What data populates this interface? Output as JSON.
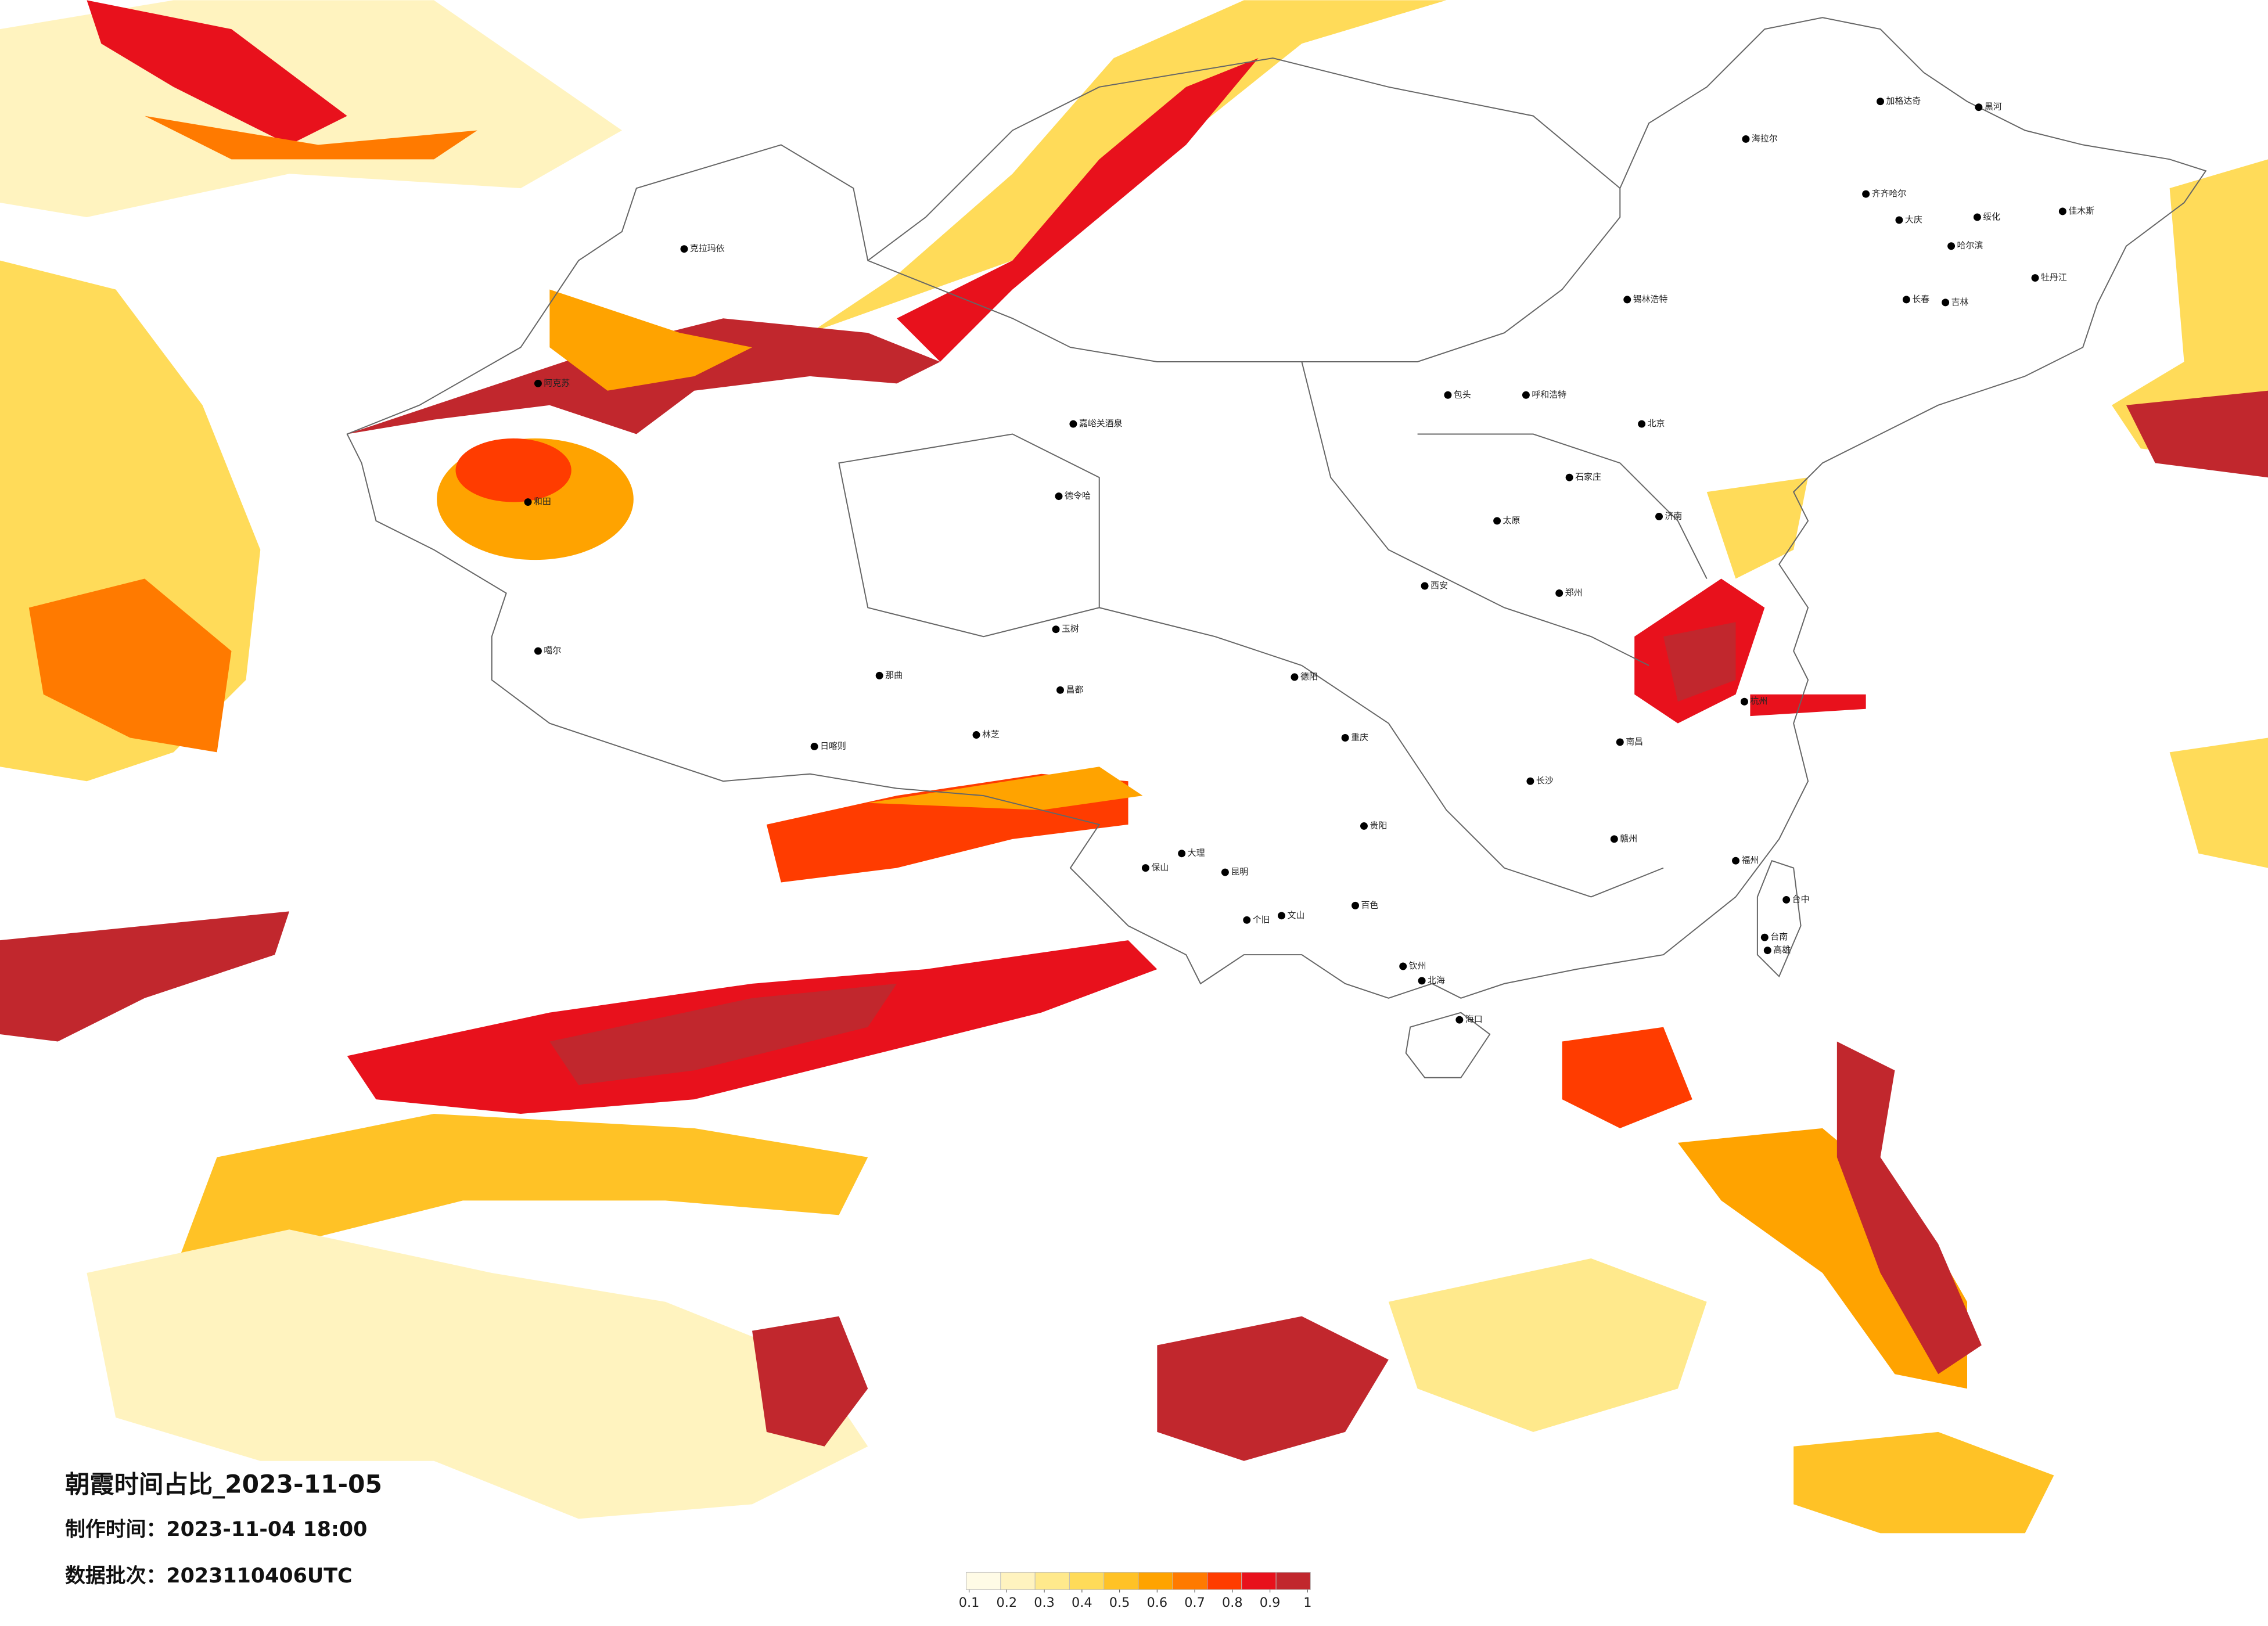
{
  "title": "朝霞时间占比_2023-11-05",
  "production_time": "制作时间：2023-11-04 18:00",
  "data_batch": "数据批次：2023110406UTC",
  "legend": {
    "colors": [
      "#fffbe6",
      "#fff3bf",
      "#ffe98c",
      "#ffdb59",
      "#ffc226",
      "#ffa300",
      "#ff7a00",
      "#ff3c00",
      "#e8111c",
      "#c1272d"
    ],
    "ticks": [
      0.1,
      0.2,
      0.3,
      0.4,
      0.5,
      0.6,
      0.7,
      0.8,
      0.9,
      1
    ]
  },
  "cities": [
    "克拉玛依",
    "阿克苏",
    "和田",
    "噶尔",
    "日喀则",
    "那曲",
    "林芝",
    "嘉峪关酒泉",
    "德令哈",
    "玉树",
    "昌都",
    "海拉尔",
    "加格达奇",
    "黑河",
    "齐齐哈尔",
    "大庆",
    "哈尔滨",
    "绥化",
    "佳木斯",
    "牡丹江",
    "长春",
    "吉林",
    "锡林浩特",
    "呼和浩特",
    "包头",
    "北京",
    "石家庄",
    "太原",
    "济南",
    "郑州",
    "西安",
    "德阳",
    "重庆",
    "贵阳",
    "昆明",
    "大理",
    "保山",
    "个旧",
    "文山",
    "百色",
    "钦州",
    "北海",
    "海口",
    "长沙",
    "南昌",
    "杭州",
    "福州",
    "赣州",
    "台中",
    "台南",
    "高雄"
  ]
}
